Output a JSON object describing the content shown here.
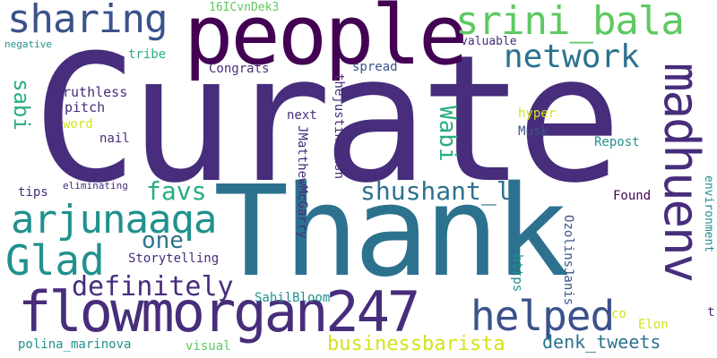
{
  "words": {
    "curate": "Curate",
    "thank": "Thank",
    "people": "people",
    "flowmorgan247": "flowmorgan247",
    "sharing": "sharing",
    "srini_bala": "srini_bala",
    "network": "network",
    "madhuenv": "madhuenv",
    "arjunaaqa": "arjunaaqa",
    "glad": "Glad",
    "helped": "helped",
    "definitely": "definitely",
    "shushant_l": "shushant_l",
    "businessbarista": "businessbarista",
    "denk_tweets": "denk_tweets",
    "favs": "favs",
    "one": "one",
    "wabi": "Wabi",
    "sabi": "sabi",
    "id16": "16ICvnDek3",
    "negative": "negative",
    "tribe": "tribe",
    "congrats": "Congrats",
    "thejustinwelsh": "thejustinwelsh",
    "spread": "spread",
    "valuable": "valuable",
    "ruthless": "ruthless",
    "pitch": "pitch",
    "word": "word",
    "nail": "nail",
    "next": "next",
    "jmatthew": "JMatthewMcGarry",
    "hyper": "hyper",
    "musk": "Musk",
    "repost": "Repost",
    "tips": "tips",
    "eliminating": "eliminating",
    "found": "Found",
    "environment": "environment",
    "storytelling": "Storytelling",
    "sahilbloom": "SahilBloom",
    "ozolinsjanis": "OzolinsJanis",
    "https": "https",
    "co": "co",
    "elon": "Elon",
    "t": "t",
    "polina": "polina_marinova",
    "visual": "visual"
  },
  "colors": {
    "purple": "#440154",
    "indigo": "#472d7b",
    "blue": "#3b528b",
    "steel": "#2c728e",
    "teal": "#21918c",
    "sea": "#28ae80",
    "green": "#5ec962",
    "lime": "#addc30",
    "yellow": "#d5e21a"
  }
}
